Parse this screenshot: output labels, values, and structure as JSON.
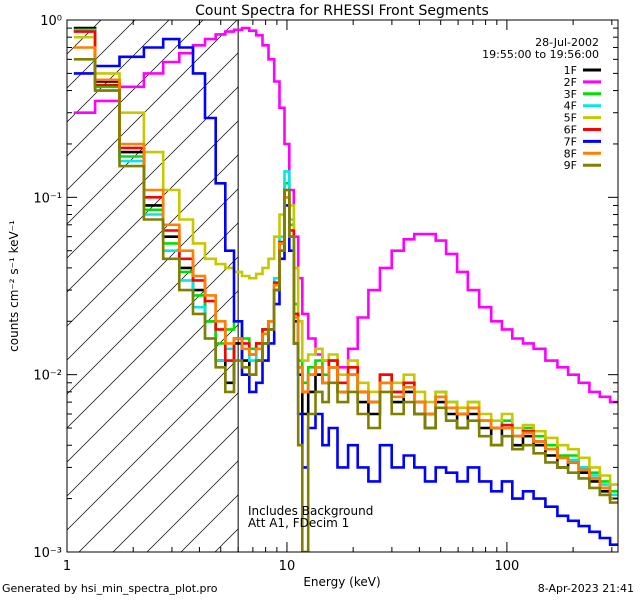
{
  "footer": {
    "generated_by": "Generated by hsi_min_spectra_plot.pro",
    "timestamp": "8-Apr-2023 21:41"
  },
  "chart_data": {
    "type": "line",
    "title": "Count Spectra for RHESSI Front Segments",
    "xlabel": "Energy (keV)",
    "ylabel": "counts cm⁻² s⁻¹ keV⁻¹",
    "xscale": "log",
    "yscale": "log",
    "xlim": [
      1,
      320
    ],
    "ylim": [
      0.001,
      1.0
    ],
    "x_tick_labels": [
      {
        "value": 1,
        "label": "1"
      },
      {
        "value": 10,
        "label": "10"
      },
      {
        "value": 100,
        "label": "100"
      }
    ],
    "y_tick_labels": [
      {
        "value": 1,
        "label": "10⁰"
      },
      {
        "value": 0.1,
        "label": "10⁻¹"
      },
      {
        "value": 0.01,
        "label": "10⁻²"
      },
      {
        "value": 0.001,
        "label": "10⁻³"
      }
    ],
    "annotations": {
      "date": "28-Jul-2002",
      "time_range": "19:55:00 to 19:56:00",
      "note_line1": "Includes Background",
      "note_line2": "Att A1, FDecim 1"
    },
    "shaded_region": {
      "x_max": 6.0,
      "style": "diagonal hatching"
    },
    "vertical_line_x": 6.0,
    "legend_position": "top-right",
    "series": [
      {
        "name": "1F",
        "color": "#000000",
        "x": [
          1.2,
          1.5,
          2,
          2.5,
          3,
          3.5,
          4,
          4.5,
          5,
          5.5,
          6,
          6.5,
          7,
          7.5,
          8,
          8.5,
          9,
          9.5,
          10,
          10.5,
          11,
          11.5,
          12,
          13,
          14,
          15,
          16,
          18,
          20,
          22,
          25,
          28,
          32,
          36,
          40,
          45,
          50,
          56,
          63,
          70,
          80,
          90,
          100,
          112,
          125,
          140,
          160,
          180,
          200,
          225,
          250,
          280,
          310
        ],
        "y": [
          0.9,
          0.45,
          0.18,
          0.09,
          0.06,
          0.04,
          0.03,
          0.02,
          0.012,
          0.009,
          0.015,
          0.012,
          0.01,
          0.012,
          0.015,
          0.018,
          0.03,
          0.05,
          0.1,
          0.06,
          0.02,
          0.01,
          0.006,
          0.008,
          0.01,
          0.009,
          0.011,
          0.008,
          0.01,
          0.007,
          0.006,
          0.009,
          0.007,
          0.008,
          0.006,
          0.005,
          0.007,
          0.006,
          0.005,
          0.006,
          0.005,
          0.004,
          0.005,
          0.004,
          0.0045,
          0.004,
          0.0035,
          0.003,
          0.0032,
          0.0028,
          0.0025,
          0.0022,
          0.002
        ]
      },
      {
        "name": "2F",
        "color": "#ff00ff",
        "x": [
          1.2,
          1.5,
          2,
          2.5,
          3,
          3.5,
          4,
          4.5,
          5,
          5.5,
          6,
          6.5,
          7,
          7.5,
          8,
          8.5,
          9,
          9.5,
          10,
          10.5,
          11,
          11.5,
          12,
          13,
          14,
          15,
          16,
          18,
          20,
          22,
          25,
          28,
          32,
          36,
          40,
          45,
          50,
          56,
          63,
          70,
          80,
          90,
          100,
          112,
          125,
          140,
          160,
          180,
          200,
          225,
          250,
          280,
          310
        ],
        "y": [
          0.3,
          0.35,
          0.42,
          0.5,
          0.58,
          0.65,
          0.72,
          0.78,
          0.83,
          0.86,
          0.88,
          0.9,
          0.87,
          0.82,
          0.72,
          0.6,
          0.45,
          0.32,
          0.2,
          0.11,
          0.06,
          0.035,
          0.022,
          0.016,
          0.013,
          0.012,
          0.011,
          0.011,
          0.014,
          0.021,
          0.03,
          0.04,
          0.05,
          0.058,
          0.062,
          0.062,
          0.057,
          0.048,
          0.038,
          0.03,
          0.024,
          0.02,
          0.018,
          0.016,
          0.015,
          0.014,
          0.012,
          0.011,
          0.01,
          0.009,
          0.008,
          0.0075,
          0.007
        ]
      },
      {
        "name": "3F",
        "color": "#00e000",
        "x": [
          1.2,
          1.5,
          2,
          2.5,
          3,
          3.5,
          4,
          4.5,
          5,
          5.5,
          6,
          6.5,
          7,
          7.5,
          8,
          8.5,
          9,
          9.5,
          10,
          10.5,
          11,
          11.5,
          12,
          13,
          14,
          15,
          16,
          18,
          20,
          22,
          25,
          28,
          32,
          36,
          40,
          45,
          50,
          56,
          63,
          70,
          80,
          90,
          100,
          112,
          125,
          140,
          160,
          180,
          200,
          225,
          250,
          280,
          310
        ],
        "y": [
          0.88,
          0.42,
          0.17,
          0.085,
          0.055,
          0.038,
          0.028,
          0.02,
          0.015,
          0.018,
          0.02,
          0.016,
          0.014,
          0.015,
          0.018,
          0.02,
          0.032,
          0.055,
          0.12,
          0.07,
          0.025,
          0.012,
          0.009,
          0.011,
          0.012,
          0.01,
          0.012,
          0.009,
          0.011,
          0.008,
          0.007,
          0.01,
          0.008,
          0.009,
          0.007,
          0.006,
          0.008,
          0.007,
          0.006,
          0.007,
          0.0055,
          0.005,
          0.0055,
          0.0045,
          0.005,
          0.0045,
          0.004,
          0.0035,
          0.0035,
          0.003,
          0.0028,
          0.0025,
          0.0022
        ]
      },
      {
        "name": "4F",
        "color": "#00e8e8",
        "x": [
          1.2,
          1.5,
          2,
          2.5,
          3,
          3.5,
          4,
          4.5,
          5,
          5.5,
          6,
          6.5,
          7,
          7.5,
          8,
          8.5,
          9,
          9.5,
          10,
          10.5,
          11,
          11.5,
          12,
          13,
          14,
          15,
          16,
          18,
          20,
          22,
          25,
          28,
          32,
          36,
          40,
          45,
          50,
          56,
          63,
          70,
          80,
          90,
          100,
          112,
          125,
          140,
          160,
          180,
          200,
          225,
          250,
          280,
          310
        ],
        "y": [
          0.87,
          0.4,
          0.16,
          0.08,
          0.05,
          0.034,
          0.024,
          0.016,
          0.012,
          0.014,
          0.016,
          0.014,
          0.012,
          0.014,
          0.017,
          0.02,
          0.035,
          0.06,
          0.14,
          0.075,
          0.022,
          0.011,
          0.008,
          0.01,
          0.011,
          0.009,
          0.011,
          0.008,
          0.01,
          0.008,
          0.007,
          0.009,
          0.008,
          0.009,
          0.007,
          0.006,
          0.008,
          0.007,
          0.006,
          0.0065,
          0.0055,
          0.005,
          0.005,
          0.0045,
          0.0048,
          0.0042,
          0.0038,
          0.0034,
          0.0033,
          0.003,
          0.0027,
          0.0024,
          0.0021
        ]
      },
      {
        "name": "5F",
        "color": "#c8c800",
        "x": [
          1.2,
          1.5,
          2,
          2.5,
          3,
          3.5,
          4,
          4.5,
          5,
          5.5,
          6,
          6.5,
          7,
          7.5,
          8,
          8.5,
          9,
          9.5,
          10,
          10.5,
          11,
          11.5,
          12,
          13,
          14,
          15,
          16,
          18,
          20,
          22,
          25,
          28,
          32,
          36,
          40,
          45,
          50,
          56,
          63,
          70,
          80,
          90,
          100,
          112,
          125,
          140,
          160,
          180,
          200,
          225,
          250,
          280,
          310
        ],
        "y": [
          0.8,
          0.5,
          0.3,
          0.18,
          0.11,
          0.075,
          0.055,
          0.045,
          0.042,
          0.04,
          0.038,
          0.036,
          0.035,
          0.037,
          0.04,
          0.045,
          0.06,
          0.08,
          0.1,
          0.09,
          0.04,
          0.02,
          0.012,
          0.013,
          0.014,
          0.012,
          0.013,
          0.01,
          0.012,
          0.009,
          0.008,
          0.01,
          0.009,
          0.01,
          0.008,
          0.007,
          0.008,
          0.007,
          0.0065,
          0.007,
          0.006,
          0.0055,
          0.006,
          0.005,
          0.0052,
          0.0048,
          0.0044,
          0.004,
          0.0038,
          0.0034,
          0.003,
          0.0027,
          0.0024
        ]
      },
      {
        "name": "6F",
        "color": "#ff0000",
        "x": [
          1.2,
          1.5,
          2,
          2.5,
          3,
          3.5,
          4,
          4.5,
          5,
          5.5,
          6,
          6.5,
          7,
          7.5,
          8,
          8.5,
          9,
          9.5,
          10,
          10.5,
          11,
          11.5,
          12,
          13,
          14,
          15,
          16,
          18,
          20,
          22,
          25,
          28,
          32,
          36,
          40,
          45,
          50,
          56,
          63,
          70,
          80,
          90,
          100,
          112,
          125,
          140,
          160,
          180,
          200,
          225,
          250,
          280,
          310
        ],
        "y": [
          0.86,
          0.43,
          0.19,
          0.1,
          0.065,
          0.045,
          0.034,
          0.026,
          0.018,
          0.012,
          0.016,
          0.015,
          0.013,
          0.015,
          0.018,
          0.02,
          0.033,
          0.056,
          0.11,
          0.065,
          0.022,
          0.011,
          0.008,
          0.01,
          0.011,
          0.009,
          0.012,
          0.009,
          0.011,
          0.008,
          0.007,
          0.01,
          0.008,
          0.009,
          0.007,
          0.006,
          0.0075,
          0.0065,
          0.006,
          0.0065,
          0.0055,
          0.005,
          0.0052,
          0.0045,
          0.0048,
          0.0042,
          0.0038,
          0.0034,
          0.0032,
          0.0029,
          0.0026,
          0.0023,
          0.002
        ]
      },
      {
        "name": "7F",
        "color": "#0000ff",
        "x": [
          1.2,
          1.5,
          2,
          2.5,
          3,
          3.5,
          4,
          4.5,
          5,
          5.5,
          6,
          6.5,
          7,
          7.5,
          8,
          8.5,
          9,
          9.5,
          10,
          10.5,
          11,
          11.5,
          12,
          13,
          14,
          15,
          16,
          18,
          20,
          22,
          25,
          28,
          32,
          36,
          40,
          45,
          50,
          56,
          63,
          70,
          80,
          90,
          100,
          112,
          125,
          140,
          160,
          180,
          200,
          225,
          250,
          280,
          310
        ],
        "y": [
          0.5,
          0.55,
          0.62,
          0.7,
          0.78,
          0.7,
          0.5,
          0.28,
          0.12,
          0.05,
          0.02,
          0.01,
          0.008,
          0.009,
          0.012,
          0.015,
          0.025,
          0.045,
          0.09,
          0.05,
          0.015,
          0.006,
          0.003,
          0.005,
          0.006,
          0.004,
          0.005,
          0.003,
          0.004,
          0.003,
          0.0025,
          0.004,
          0.003,
          0.0035,
          0.003,
          0.0025,
          0.003,
          0.0028,
          0.0025,
          0.003,
          0.0025,
          0.0022,
          0.0025,
          0.002,
          0.0022,
          0.002,
          0.0018,
          0.0016,
          0.0015,
          0.0014,
          0.0013,
          0.0012,
          0.0011
        ]
      },
      {
        "name": "8F",
        "color": "#ff8000",
        "x": [
          1.2,
          1.5,
          2,
          2.5,
          3,
          3.5,
          4,
          4.5,
          5,
          5.5,
          6,
          6.5,
          7,
          7.5,
          8,
          8.5,
          9,
          9.5,
          10,
          10.5,
          11,
          11.5,
          12,
          13,
          14,
          15,
          16,
          18,
          20,
          22,
          25,
          28,
          32,
          36,
          40,
          45,
          50,
          56,
          63,
          70,
          80,
          90,
          100,
          112,
          125,
          140,
          160,
          180,
          200,
          225,
          250,
          280,
          310
        ],
        "y": [
          0.7,
          0.46,
          0.2,
          0.11,
          0.07,
          0.05,
          0.036,
          0.028,
          0.02,
          0.015,
          0.016,
          0.014,
          0.013,
          0.014,
          0.017,
          0.02,
          0.032,
          0.055,
          0.1,
          0.06,
          0.021,
          0.011,
          0.008,
          0.01,
          0.011,
          0.009,
          0.011,
          0.008,
          0.01,
          0.008,
          0.007,
          0.009,
          0.0075,
          0.0085,
          0.007,
          0.006,
          0.0075,
          0.0065,
          0.006,
          0.0065,
          0.0055,
          0.005,
          0.005,
          0.0045,
          0.0047,
          0.0042,
          0.0038,
          0.0034,
          0.0032,
          0.0029,
          0.0026,
          0.0023,
          0.002
        ]
      },
      {
        "name": "9F",
        "color": "#808000",
        "x": [
          1.2,
          1.5,
          2,
          2.5,
          3,
          3.5,
          4,
          4.5,
          5,
          5.5,
          6,
          6.5,
          7,
          7.5,
          8,
          8.5,
          9,
          9.5,
          10,
          10.5,
          11,
          11.5,
          12,
          13,
          14,
          15,
          16,
          18,
          20,
          22,
          25,
          28,
          32,
          36,
          40,
          45,
          50,
          56,
          63,
          70,
          80,
          90,
          100,
          112,
          125,
          140,
          160,
          180,
          200,
          225,
          250,
          280,
          310
        ],
        "y": [
          0.6,
          0.4,
          0.15,
          0.075,
          0.045,
          0.03,
          0.022,
          0.016,
          0.011,
          0.008,
          0.012,
          0.011,
          0.01,
          0.012,
          0.015,
          0.018,
          0.03,
          0.05,
          0.11,
          0.06,
          0.015,
          0.004,
          0.001,
          0.006,
          0.008,
          0.007,
          0.009,
          0.007,
          0.008,
          0.006,
          0.005,
          0.008,
          0.006,
          0.007,
          0.006,
          0.005,
          0.0065,
          0.0055,
          0.005,
          0.0055,
          0.0045,
          0.004,
          0.0045,
          0.0038,
          0.004,
          0.0036,
          0.0032,
          0.003,
          0.0028,
          0.0026,
          0.0023,
          0.0021,
          0.0019
        ]
      }
    ]
  }
}
